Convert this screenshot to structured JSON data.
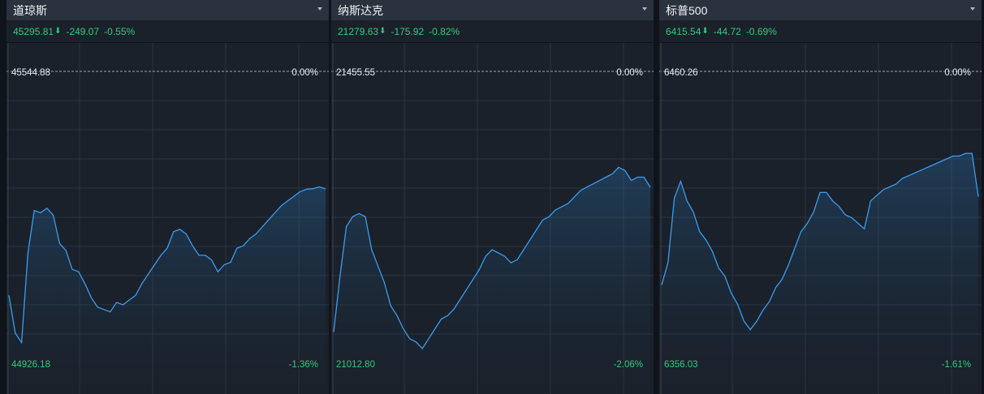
{
  "panels": [
    {
      "title": "道琼斯",
      "price": "45295.81",
      "change": "-249.07",
      "change_pct": "-0.55%",
      "arrow": "⬇",
      "chart_top_value": "45544.88",
      "chart_top_pct": "0.00%",
      "chart_bottom_value": "44926.18",
      "chart_bottom_pct": "-1.36%"
    },
    {
      "title": "纳斯达克",
      "price": "21279.63",
      "change": "-175.92",
      "change_pct": "-0.82%",
      "arrow": "⬇",
      "chart_top_value": "21455.55",
      "chart_top_pct": "0.00%",
      "chart_bottom_value": "21012.80",
      "chart_bottom_pct": "-2.06%"
    },
    {
      "title": "标普500",
      "price": "6415.54",
      "change": "-44.72",
      "change_pct": "-0.69%",
      "arrow": "⬇",
      "chart_top_value": "6460.26",
      "chart_top_pct": "0.00%",
      "chart_bottom_value": "6356.03",
      "chart_bottom_pct": "-1.61%"
    }
  ],
  "chart_data": [
    {
      "type": "area",
      "yrange": [
        44926.18,
        45544.88
      ],
      "x_frac": [
        0.0,
        0.02,
        0.04,
        0.06,
        0.08,
        0.1,
        0.12,
        0.14,
        0.16,
        0.18,
        0.2,
        0.22,
        0.24,
        0.26,
        0.28,
        0.3,
        0.32,
        0.34,
        0.36,
        0.38,
        0.4,
        0.42,
        0.44,
        0.46,
        0.48,
        0.5,
        0.52,
        0.54,
        0.56,
        0.58,
        0.6,
        0.62,
        0.64,
        0.66,
        0.68,
        0.7,
        0.72,
        0.74,
        0.76,
        0.78,
        0.8,
        0.82,
        0.84,
        0.86,
        0.88,
        0.9,
        0.92,
        0.94,
        0.96,
        0.98,
        1.0
      ],
      "values": [
        45070,
        44990,
        44970,
        45160,
        45250,
        45245,
        45255,
        45240,
        45180,
        45165,
        45125,
        45120,
        45095,
        45065,
        45045,
        45040,
        45035,
        45055,
        45050,
        45060,
        45070,
        45095,
        45115,
        45135,
        45155,
        45170,
        45205,
        45210,
        45200,
        45175,
        45155,
        45155,
        45145,
        45120,
        45135,
        45140,
        45170,
        45175,
        45190,
        45200,
        45215,
        45230,
        45245,
        45260,
        45270,
        45280,
        45290,
        45295,
        45296,
        45300,
        45295.81
      ]
    },
    {
      "type": "area",
      "yrange": [
        21012.8,
        21455.55
      ],
      "x_frac": [
        0.0,
        0.02,
        0.04,
        0.06,
        0.08,
        0.1,
        0.12,
        0.14,
        0.16,
        0.18,
        0.2,
        0.22,
        0.24,
        0.26,
        0.28,
        0.3,
        0.32,
        0.34,
        0.36,
        0.38,
        0.4,
        0.42,
        0.44,
        0.46,
        0.48,
        0.5,
        0.52,
        0.54,
        0.56,
        0.58,
        0.6,
        0.62,
        0.64,
        0.66,
        0.68,
        0.7,
        0.72,
        0.74,
        0.76,
        0.78,
        0.8,
        0.82,
        0.84,
        0.86,
        0.88,
        0.9,
        0.92,
        0.94,
        0.96,
        0.98,
        1.0
      ],
      "values": [
        21060,
        21145,
        21220,
        21235,
        21240,
        21235,
        21185,
        21160,
        21135,
        21100,
        21085,
        21065,
        21050,
        21045,
        21035,
        21050,
        21065,
        21080,
        21085,
        21095,
        21110,
        21125,
        21140,
        21155,
        21175,
        21185,
        21180,
        21175,
        21165,
        21170,
        21185,
        21200,
        21215,
        21230,
        21235,
        21245,
        21250,
        21255,
        21265,
        21275,
        21280,
        21285,
        21290,
        21295,
        21300,
        21310,
        21305,
        21290,
        21295,
        21295,
        21279.63
      ]
    },
    {
      "type": "area",
      "yrange": [
        6356.03,
        6460.26
      ],
      "x_frac": [
        0.0,
        0.02,
        0.04,
        0.06,
        0.08,
        0.1,
        0.12,
        0.14,
        0.16,
        0.18,
        0.2,
        0.22,
        0.24,
        0.26,
        0.28,
        0.3,
        0.32,
        0.34,
        0.36,
        0.38,
        0.4,
        0.42,
        0.44,
        0.46,
        0.48,
        0.5,
        0.52,
        0.54,
        0.56,
        0.58,
        0.6,
        0.62,
        0.64,
        0.66,
        0.68,
        0.7,
        0.72,
        0.74,
        0.76,
        0.78,
        0.8,
        0.82,
        0.84,
        0.86,
        0.88,
        0.9,
        0.92,
        0.94,
        0.96,
        0.98,
        1.0
      ],
      "values": [
        6384,
        6392,
        6415,
        6421,
        6414,
        6410,
        6403,
        6400,
        6396,
        6390,
        6387,
        6381,
        6377,
        6371,
        6368,
        6371,
        6375,
        6378,
        6383,
        6386,
        6391,
        6397,
        6403,
        6406,
        6410,
        6417,
        6417,
        6414,
        6412,
        6409,
        6408,
        6406,
        6404,
        6414,
        6416,
        6418,
        6419,
        6420,
        6422,
        6423,
        6424,
        6425,
        6426,
        6427,
        6428,
        6429,
        6430,
        6430,
        6431,
        6431,
        6415.54
      ]
    }
  ]
}
